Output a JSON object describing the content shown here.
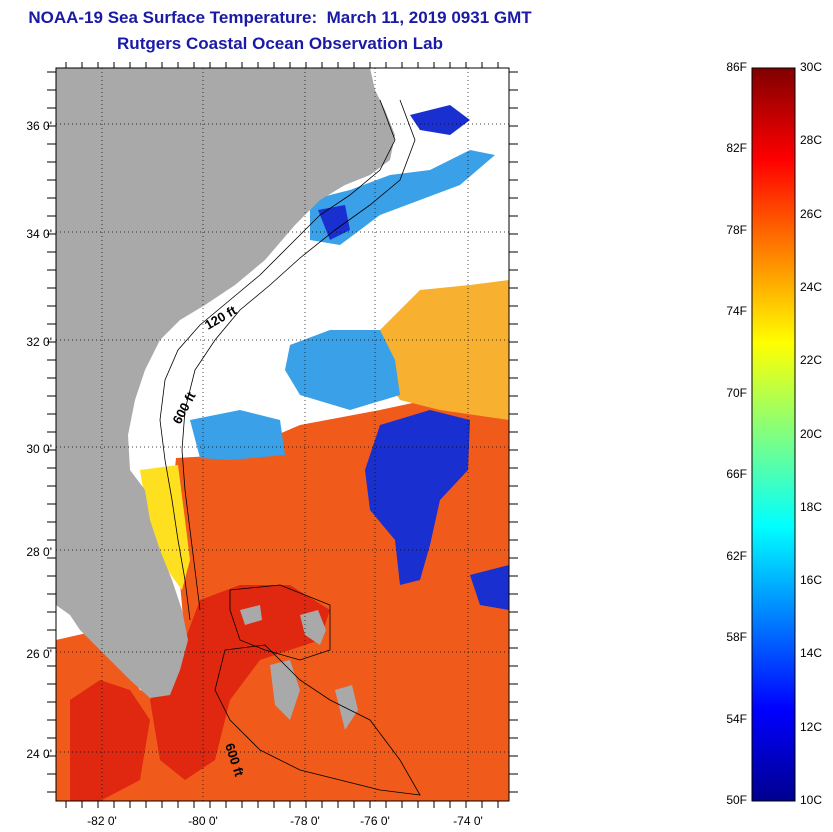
{
  "title": {
    "line1": "NOAA-19 Sea Surface Temperature:  March 11, 2019 0931 GMT",
    "line2": "Rutgers Coastal Ocean Observation Lab"
  },
  "map": {
    "lat_labels": [
      "36 0'",
      "34 0'",
      "32 0'",
      "30 0'",
      "28 0'",
      "26 0'",
      "24 0'"
    ],
    "lon_labels": [
      "-82 0'",
      "-80 0'",
      "-78 0'",
      "-76 0'",
      "-74 0'"
    ],
    "contour_labels": [
      "120 ft",
      "600 ft",
      "600 ft"
    ],
    "colors": {
      "land": "#a9a9a9",
      "cloud": "#ffffff",
      "warm": "#f05a1a",
      "hot": "#e02810",
      "cold": "#1a2fd0",
      "cool": "#3aa0e8",
      "mild": "#ffe020",
      "yellow_orange": "#f7b030"
    }
  },
  "colorbar": {
    "fahrenheit": [
      "86F",
      "82F",
      "78F",
      "74F",
      "70F",
      "66F",
      "62F",
      "58F",
      "54F",
      "50F"
    ],
    "celsius": [
      "30C",
      "28C",
      "26C",
      "24C",
      "22C",
      "20C",
      "18C",
      "16C",
      "14C",
      "12C",
      "10C"
    ],
    "gradient": [
      "#00008f",
      "#0000ff",
      "#0080ff",
      "#00ffff",
      "#80ff80",
      "#ffff00",
      "#ff8000",
      "#ff0000",
      "#800000"
    ]
  }
}
